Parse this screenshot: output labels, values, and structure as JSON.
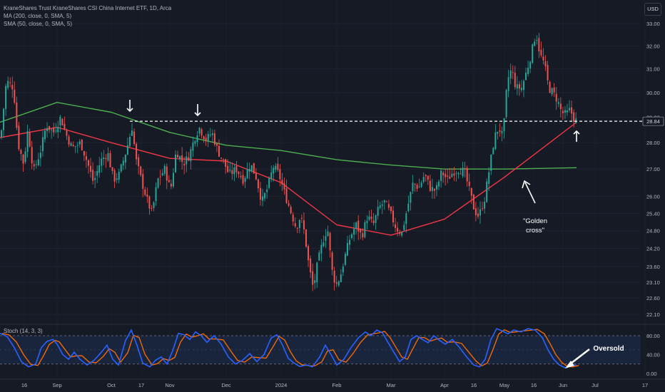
{
  "legend": {
    "title": "KraneShares Trust KraneShares CSI China Internet ETF, 1D, Arca",
    "ma200": "MA (200, close, 0, SMA, 5)",
    "sma50": "SMA (50, close, 0, SMA, 5)"
  },
  "currency": "USD",
  "price_label": "28.84",
  "stoch_label": "Stoch (14, 3, 3)",
  "annotations": {
    "golden_cross_line1": "\"Golden",
    "golden_cross_line2": "cross\"",
    "oversold": "Oversold"
  },
  "colors": {
    "background": "#161a25",
    "up": "#26a69a",
    "down": "#ef5350",
    "ma200": "#4caf50",
    "sma50": "#f23645",
    "stoch_k": "#2962ff",
    "stoch_d": "#ff6d00",
    "resistance_line": "#ffffff"
  },
  "chart_data": [
    {
      "type": "candlestick",
      "y_axis_ticks": [
        "33.00",
        "32.00",
        "31.00",
        "30.00",
        "29.00",
        "28.00",
        "27.00",
        "26.00",
        "25.40",
        "24.80",
        "24.20",
        "23.60",
        "23.10",
        "22.60",
        "22.10"
      ],
      "y_scale": "log",
      "x_axis_ticks": [
        "16",
        "Sep",
        "Oct",
        "17",
        "Nov",
        "Dec",
        "2024",
        "Feb",
        "Mar",
        "Apr",
        "16",
        "May",
        "16",
        "Jun",
        "Jul",
        "17"
      ],
      "current_price": 28.84,
      "resistance_level": 28.84,
      "approx_daily_close": {
        "Aug 2023 start": 28.2,
        "Aug 16": 29.0,
        "Sep": 27.8,
        "Oct": 27.0,
        "Oct 17": 28.6,
        "Nov": 26.0,
        "Nov mid": 28.5,
        "Dec": 27.0,
        "2024": 26.3,
        "Jan mid": 25.0,
        "Feb low": 22.7,
        "Feb": 23.3,
        "Mar": 25.7,
        "Mar mid": 25.1,
        "Apr": 27.0,
        "Apr 16": 25.3,
        "May": 30.5,
        "May 16": 32.6,
        "Jun": 29.0,
        "Jun end": 28.84
      },
      "series": [
        {
          "name": "MA (200, close, 0, SMA, 5)",
          "color": "#4caf50",
          "points": [
            [
              "Aug",
              28.8
            ],
            [
              "Sep",
              29.6
            ],
            [
              "Oct",
              29.2
            ],
            [
              "Nov",
              28.4
            ],
            [
              "Dec",
              27.9
            ],
            [
              "2024",
              27.7
            ],
            [
              "Feb",
              27.35
            ],
            [
              "Mar",
              27.15
            ],
            [
              "Apr",
              27.0
            ],
            [
              "May",
              27.0
            ],
            [
              "Jun",
              27.05
            ]
          ]
        },
        {
          "name": "SMA (50, close, 0, SMA, 5)",
          "color": "#f23645",
          "points": [
            [
              "Aug",
              28.2
            ],
            [
              "Sep",
              28.6
            ],
            [
              "Oct",
              28.0
            ],
            [
              "Nov",
              27.4
            ],
            [
              "Dec",
              27.3
            ],
            [
              "2024",
              26.5
            ],
            [
              "Feb",
              25.0
            ],
            [
              "Mar",
              24.65
            ],
            [
              "Apr",
              25.2
            ],
            [
              "May",
              26.7
            ],
            [
              "Jun",
              28.8
            ]
          ]
        }
      ]
    },
    {
      "type": "line",
      "title": "Stoch (14, 3, 3)",
      "y_axis_ticks": [
        "80.00",
        "40.00",
        "0.00"
      ],
      "bands": [
        80,
        20
      ],
      "series": [
        {
          "name": "%K",
          "color": "#2962ff"
        },
        {
          "name": "%D",
          "color": "#ff6d00"
        }
      ]
    }
  ]
}
